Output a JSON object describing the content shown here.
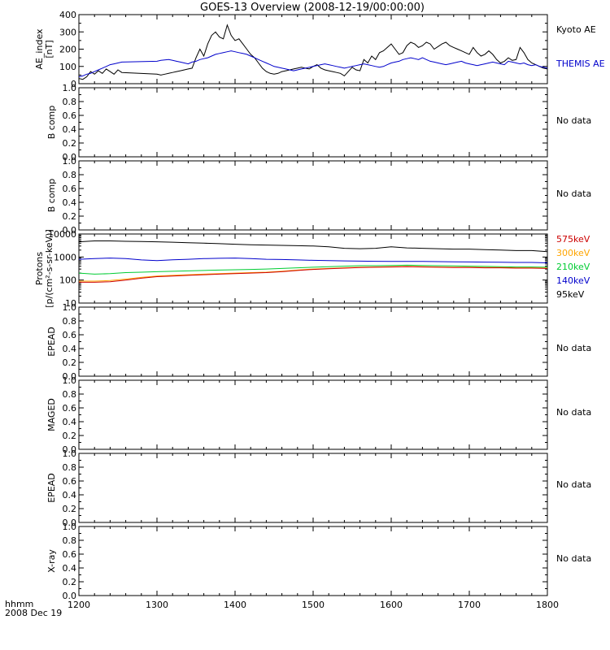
{
  "title": "GOES-13 Overview (2008-12-19/00:00:00)",
  "x_axis": {
    "ticks": [
      "1200",
      "1300",
      "1400",
      "1500",
      "1600",
      "1700",
      "1800"
    ],
    "label_line1": "hhmm",
    "label_line2": "2008 Dec 19"
  },
  "no_data_label": "No data",
  "chart_data": [
    {
      "type": "line",
      "ylabel_line1": "AE_index",
      "ylabel_line2": "[nT]",
      "ylim": [
        0,
        400
      ],
      "y_ticks": [
        "0",
        "100",
        "200",
        "300",
        "400"
      ],
      "x": [
        1200,
        1205,
        1210,
        1215,
        1220,
        1225,
        1230,
        1235,
        1240,
        1245,
        1250,
        1255,
        1300,
        1305,
        1310,
        1315,
        1320,
        1325,
        1330,
        1335,
        1340,
        1345,
        1350,
        1355,
        1360,
        1365,
        1370,
        1375,
        1380,
        1385,
        1390,
        1395,
        1400,
        1405,
        1410,
        1415,
        1420,
        1425,
        1430,
        1435,
        1440,
        1445,
        1450,
        1455,
        1460,
        1465,
        1470,
        1475,
        1480,
        1485,
        1490,
        1495,
        1500,
        1505,
        1510,
        1515,
        1520,
        1525,
        1530,
        1535,
        1540,
        1545,
        1550,
        1555,
        1560,
        1565,
        1570,
        1575,
        1580,
        1585,
        1590,
        1595,
        1600,
        1605,
        1610,
        1615,
        1620,
        1625,
        1630,
        1635,
        1640,
        1645,
        1650,
        1655,
        1660,
        1665,
        1670,
        1675,
        1680,
        1685,
        1690,
        1695,
        1700,
        1705,
        1710,
        1715,
        1720,
        1725,
        1730,
        1735,
        1740,
        1745,
        1750,
        1755,
        1760,
        1765,
        1770,
        1775,
        1780,
        1785,
        1790,
        1795,
        1800
      ],
      "series": [
        {
          "name": "Kyoto AE",
          "color": "#000000",
          "values": [
            30,
            25,
            40,
            70,
            55,
            75,
            60,
            85,
            70,
            55,
            80,
            65,
            55,
            50,
            55,
            60,
            65,
            70,
            75,
            80,
            85,
            90,
            150,
            200,
            160,
            230,
            280,
            300,
            270,
            260,
            340,
            280,
            250,
            260,
            230,
            200,
            170,
            150,
            120,
            90,
            70,
            60,
            55,
            60,
            70,
            75,
            80,
            85,
            90,
            95,
            90,
            85,
            100,
            110,
            90,
            80,
            75,
            70,
            65,
            60,
            45,
            70,
            95,
            80,
            75,
            140,
            120,
            160,
            140,
            180,
            190,
            210,
            230,
            200,
            170,
            180,
            220,
            240,
            230,
            210,
            220,
            240,
            230,
            200,
            215,
            230,
            240,
            220,
            210,
            200,
            190,
            180,
            170,
            210,
            180,
            160,
            170,
            190,
            170,
            140,
            120,
            130,
            150,
            135,
            140,
            210,
            180,
            140,
            120,
            110,
            100,
            90,
            85
          ]
        },
        {
          "name": "THEMIS AE",
          "color": "#0000cc",
          "values": [
            40,
            45,
            55,
            60,
            70,
            80,
            90,
            100,
            110,
            115,
            120,
            125,
            130,
            135,
            138,
            140,
            135,
            130,
            125,
            120,
            115,
            125,
            130,
            140,
            145,
            150,
            160,
            170,
            175,
            180,
            185,
            190,
            185,
            180,
            175,
            170,
            160,
            150,
            140,
            130,
            120,
            110,
            100,
            95,
            90,
            85,
            80,
            75,
            80,
            85,
            90,
            95,
            100,
            105,
            110,
            115,
            110,
            105,
            100,
            95,
            90,
            95,
            100,
            105,
            110,
            115,
            110,
            105,
            100,
            95,
            100,
            110,
            120,
            125,
            130,
            140,
            145,
            150,
            145,
            140,
            150,
            140,
            130,
            125,
            120,
            115,
            110,
            115,
            120,
            125,
            130,
            120,
            115,
            110,
            105,
            110,
            115,
            120,
            125,
            120,
            115,
            110,
            130,
            125,
            120,
            115,
            120,
            110,
            105,
            110,
            100,
            95,
            90
          ]
        }
      ]
    },
    {
      "type": "line",
      "ylabel_line1": "B comp",
      "ylim": [
        0,
        1
      ],
      "y_ticks": [
        "0.0",
        "0.2",
        "0.4",
        "0.6",
        "0.8",
        "1.0"
      ]
    },
    {
      "type": "line",
      "ylabel_line1": "B comp",
      "ylim": [
        0,
        1
      ],
      "y_ticks": [
        "0.0",
        "0.2",
        "0.4",
        "0.6",
        "0.8",
        "1.0"
      ]
    },
    {
      "type": "line",
      "scale": "log",
      "ylabel_line1": "Protons",
      "ylabel_line2": "[p/(cm²-s-sr-keV)]",
      "ylim": [
        10,
        10000
      ],
      "y_ticks": [
        "10",
        "100",
        "1000",
        "10000"
      ],
      "x": [
        1200,
        1220,
        1240,
        1260,
        1280,
        1300,
        1320,
        1340,
        1360,
        1380,
        1400,
        1420,
        1440,
        1460,
        1480,
        1500,
        1520,
        1540,
        1560,
        1580,
        1600,
        1620,
        1640,
        1660,
        1680,
        1700,
        1720,
        1740,
        1760,
        1780,
        1800
      ],
      "series": [
        {
          "name": "95keV",
          "color": "#000000",
          "values": [
            4600,
            5000,
            5000,
            4800,
            4700,
            4600,
            4400,
            4200,
            4000,
            3800,
            3600,
            3400,
            3300,
            3200,
            3100,
            3000,
            2800,
            2400,
            2300,
            2400,
            2800,
            2500,
            2400,
            2300,
            2200,
            2200,
            2100,
            2000,
            1900,
            1900,
            1700
          ]
        },
        {
          "name": "140keV",
          "color": "#0000cc",
          "values": [
            800,
            850,
            900,
            850,
            750,
            700,
            760,
            800,
            850,
            880,
            900,
            850,
            800,
            780,
            750,
            720,
            700,
            680,
            660,
            650,
            640,
            640,
            640,
            630,
            620,
            610,
            600,
            590,
            580,
            580,
            560
          ]
        },
        {
          "name": "210keV",
          "color": "#00cc33",
          "values": [
            200,
            180,
            190,
            210,
            220,
            230,
            240,
            250,
            260,
            270,
            280,
            290,
            300,
            320,
            340,
            360,
            380,
            400,
            420,
            420,
            430,
            440,
            430,
            420,
            410,
            400,
            390,
            380,
            370,
            370,
            360
          ]
        },
        {
          "name": "300keV",
          "color": "#ffa500",
          "values": [
            90,
            90,
            95,
            110,
            130,
            150,
            160,
            170,
            180,
            190,
            200,
            210,
            220,
            240,
            270,
            300,
            320,
            340,
            360,
            370,
            380,
            390,
            380,
            370,
            360,
            360,
            350,
            350,
            340,
            340,
            330
          ]
        },
        {
          "name": "575keV",
          "color": "#cc0000",
          "values": [
            80,
            80,
            85,
            100,
            120,
            140,
            150,
            160,
            170,
            180,
            190,
            200,
            210,
            230,
            260,
            290,
            310,
            330,
            350,
            360,
            370,
            380,
            370,
            360,
            350,
            350,
            340,
            340,
            330,
            330,
            320
          ]
        }
      ]
    },
    {
      "type": "line",
      "ylabel_line1": "EPEAD",
      "ylim": [
        0,
        1
      ],
      "y_ticks": [
        "0.0",
        "0.2",
        "0.4",
        "0.6",
        "0.8",
        "1.0"
      ]
    },
    {
      "type": "line",
      "ylabel_line1": "MAGED",
      "ylim": [
        0,
        1
      ],
      "y_ticks": [
        "0.0",
        "0.2",
        "0.4",
        "0.6",
        "0.8",
        "1.0"
      ]
    },
    {
      "type": "line",
      "ylabel_line1": "EPEAD",
      "ylim": [
        0,
        1
      ],
      "y_ticks": [
        "0.0",
        "0.2",
        "0.4",
        "0.6",
        "0.8",
        "1.0"
      ]
    },
    {
      "type": "line",
      "ylabel_line1": "X-ray",
      "ylim": [
        0,
        1
      ],
      "y_ticks": [
        "0.0",
        "0.2",
        "0.4",
        "0.6",
        "0.8",
        "1.0"
      ]
    }
  ]
}
